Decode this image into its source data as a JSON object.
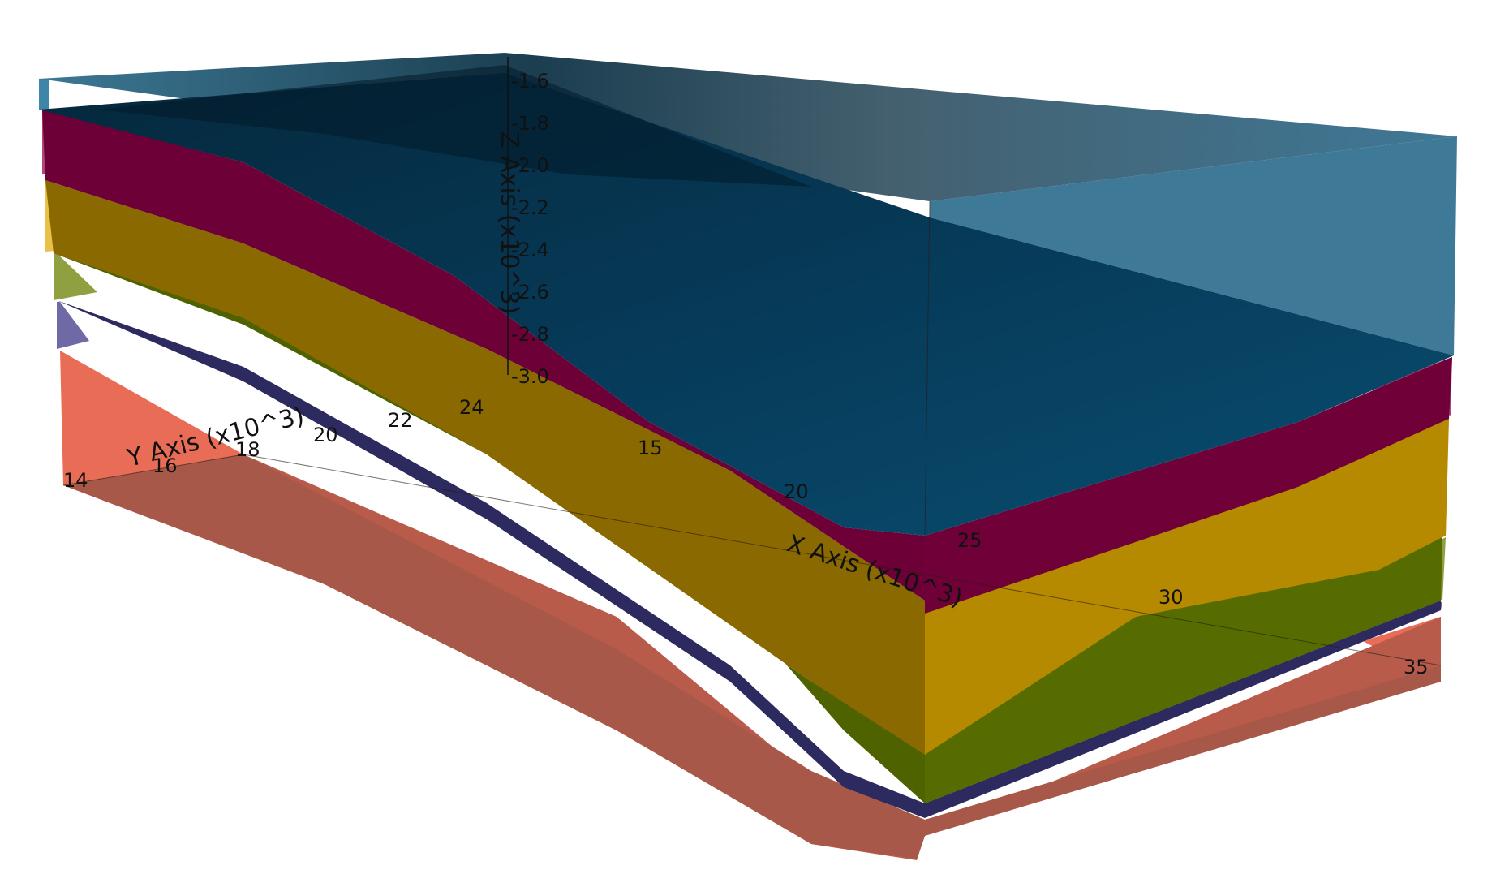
{
  "axes": {
    "z": {
      "title": "Z Axis (x10^3)",
      "ticks": [
        "-1.6",
        "-1.8",
        "-2.0",
        "-2.2",
        "-2.4",
        "-2.6",
        "-2.8",
        "-3.0"
      ]
    },
    "y": {
      "title": "Y Axis (x10^3)",
      "ticks": [
        "14",
        "16",
        "18",
        "20",
        "22",
        "24"
      ]
    },
    "x": {
      "title": "X Axis (x10^3)",
      "ticks": [
        "15",
        "20",
        "25",
        "30",
        "35"
      ]
    }
  },
  "layers": [
    {
      "name": "top-layer",
      "color": "#0a4a6e"
    },
    {
      "name": "magenta-layer",
      "color": "#6d0036"
    },
    {
      "name": "yellow-layer",
      "color": "#b88a00"
    },
    {
      "name": "olive-layer",
      "color": "#4f6300"
    },
    {
      "name": "purple-layer",
      "color": "#2e2a6a"
    },
    {
      "name": "salmon-layer",
      "color": "#c86450"
    }
  ]
}
